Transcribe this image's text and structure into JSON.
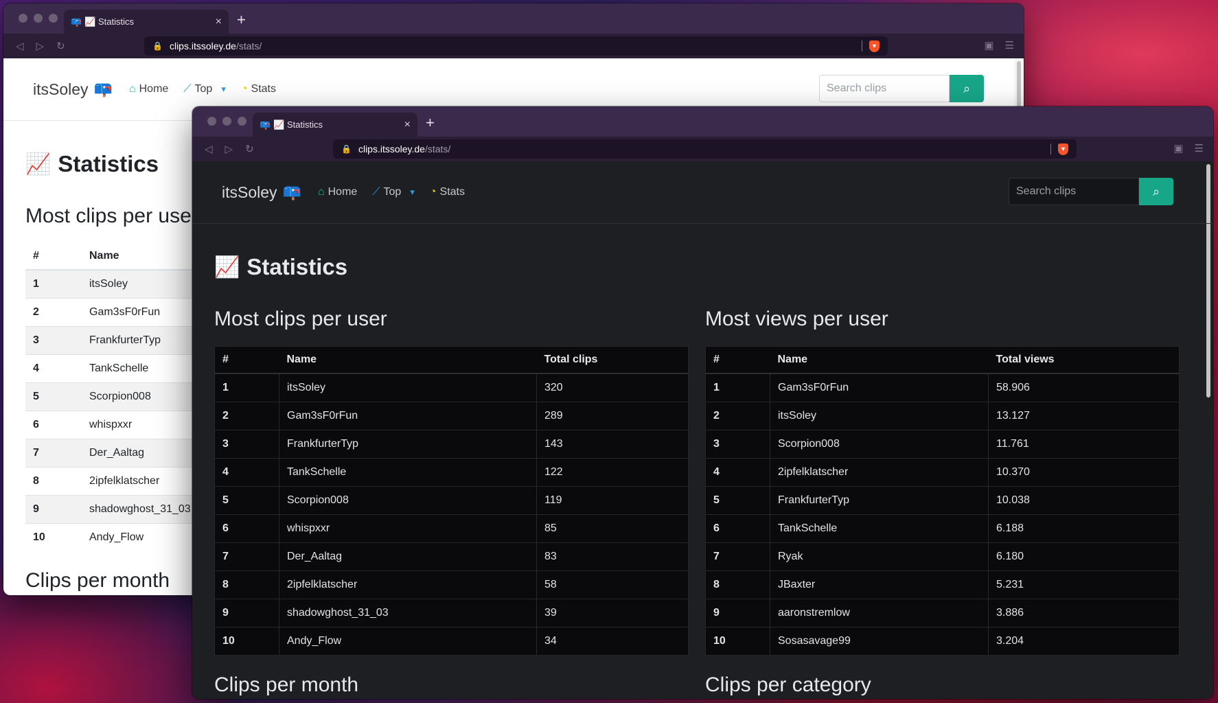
{
  "browser": {
    "tab_title": "📈 Statistics",
    "tab_favicon": "📪",
    "url_host": "clips.itssoley.de",
    "url_path": "/stats/"
  },
  "nav": {
    "brand": "itsSoley",
    "brand_icon": "📪",
    "home": "Home",
    "top": "Top",
    "stats": "Stats",
    "search_placeholder": "Search clips"
  },
  "page": {
    "title": "Statistics",
    "title_emoji": "📈"
  },
  "clips_per_user": {
    "heading": "Most clips per user",
    "columns": [
      "#",
      "Name",
      "Total clips"
    ],
    "rows": [
      [
        "1",
        "itsSoley",
        "320"
      ],
      [
        "2",
        "Gam3sF0rFun",
        "289"
      ],
      [
        "3",
        "FrankfurterTyp",
        "143"
      ],
      [
        "4",
        "TankSchelle",
        "122"
      ],
      [
        "5",
        "Scorpion008",
        "119"
      ],
      [
        "6",
        "whispxxr",
        "85"
      ],
      [
        "7",
        "Der_Aaltag",
        "83"
      ],
      [
        "8",
        "2ipfelklatscher",
        "58"
      ],
      [
        "9",
        "shadowghost_31_03",
        "39"
      ],
      [
        "10",
        "Andy_Flow",
        "34"
      ]
    ]
  },
  "views_per_user": {
    "heading": "Most views per user",
    "columns": [
      "#",
      "Name",
      "Total views"
    ],
    "rows": [
      [
        "1",
        "Gam3sF0rFun",
        "58.906"
      ],
      [
        "2",
        "itsSoley",
        "13.127"
      ],
      [
        "3",
        "Scorpion008",
        "11.761"
      ],
      [
        "4",
        "2ipfelklatscher",
        "10.370"
      ],
      [
        "5",
        "FrankfurterTyp",
        "10.038"
      ],
      [
        "6",
        "TankSchelle",
        "6.188"
      ],
      [
        "7",
        "Ryak",
        "6.180"
      ],
      [
        "8",
        "JBaxter",
        "5.231"
      ],
      [
        "9",
        "aaronstremlow",
        "3.886"
      ],
      [
        "10",
        "Sosasavage99",
        "3.204"
      ]
    ]
  },
  "clips_per_month": {
    "heading": "Clips per month"
  },
  "clips_per_category": {
    "heading": "Clips per category"
  }
}
